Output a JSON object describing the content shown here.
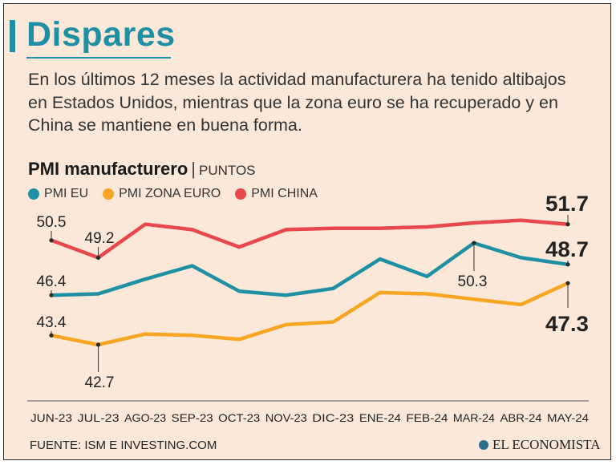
{
  "header": {
    "title": "Dispares",
    "subtitle": "En los últimos 12 meses la actividad manufacturera ha tenido altibajos en Estados Unidos, mientras que la zona euro se ha recuperado y en China se mantiene en buena forma."
  },
  "chart_data": {
    "type": "line",
    "title": "PMI manufacturero",
    "unit": "PUNTOS",
    "categories": [
      "JUN-23",
      "JUL-23",
      "AGO-23",
      "SEP-23",
      "OCT-23",
      "NOV-23",
      "DIC-23",
      "ENE-24",
      "FEB-24",
      "MAR-24",
      "ABR-24",
      "MAY-24"
    ],
    "series": [
      {
        "name": "PMI EU",
        "color": "#1f8fa4",
        "values": [
          46.4,
          46.5,
          47.6,
          48.6,
          46.7,
          46.4,
          46.9,
          49.1,
          47.8,
          50.3,
          49.2,
          48.7
        ]
      },
      {
        "name": "PMI ZONA EURO",
        "color": "#f6a623",
        "values": [
          43.4,
          42.7,
          43.5,
          43.4,
          43.1,
          44.2,
          44.4,
          46.6,
          46.5,
          46.1,
          45.7,
          47.3
        ]
      },
      {
        "name": "PMI CHINA",
        "color": "#e8474c",
        "values": [
          50.5,
          49.2,
          51.7,
          51.3,
          50.0,
          51.3,
          51.4,
          51.4,
          51.5,
          51.8,
          52.0,
          51.7
        ]
      }
    ],
    "ylim": [
      41.5,
      53.0
    ],
    "annotations": [
      {
        "id": "china-jun",
        "series": 2,
        "index": 0,
        "label": "50.5"
      },
      {
        "id": "china-jul",
        "series": 2,
        "index": 1,
        "label": "49.2"
      },
      {
        "id": "eu-jun",
        "series": 0,
        "index": 0,
        "label": "46.4"
      },
      {
        "id": "euro-jun",
        "series": 1,
        "index": 0,
        "label": "43.4"
      },
      {
        "id": "euro-jul",
        "series": 1,
        "index": 1,
        "label": "42.7"
      },
      {
        "id": "eu-mar",
        "series": 0,
        "index": 9,
        "label": "50.3"
      },
      {
        "id": "china-may",
        "series": 2,
        "index": 11,
        "label": "51.7"
      },
      {
        "id": "eu-may",
        "series": 0,
        "index": 11,
        "label": "48.7"
      },
      {
        "id": "euro-may",
        "series": 1,
        "index": 11,
        "label": "47.3"
      }
    ]
  },
  "footer": {
    "source": "FUENTE: ISM E INVESTING.COM",
    "brand": "EL ECONOMISTA"
  },
  "colors": {
    "accent": "#1f8fa4",
    "background": "#fbe8d9"
  }
}
